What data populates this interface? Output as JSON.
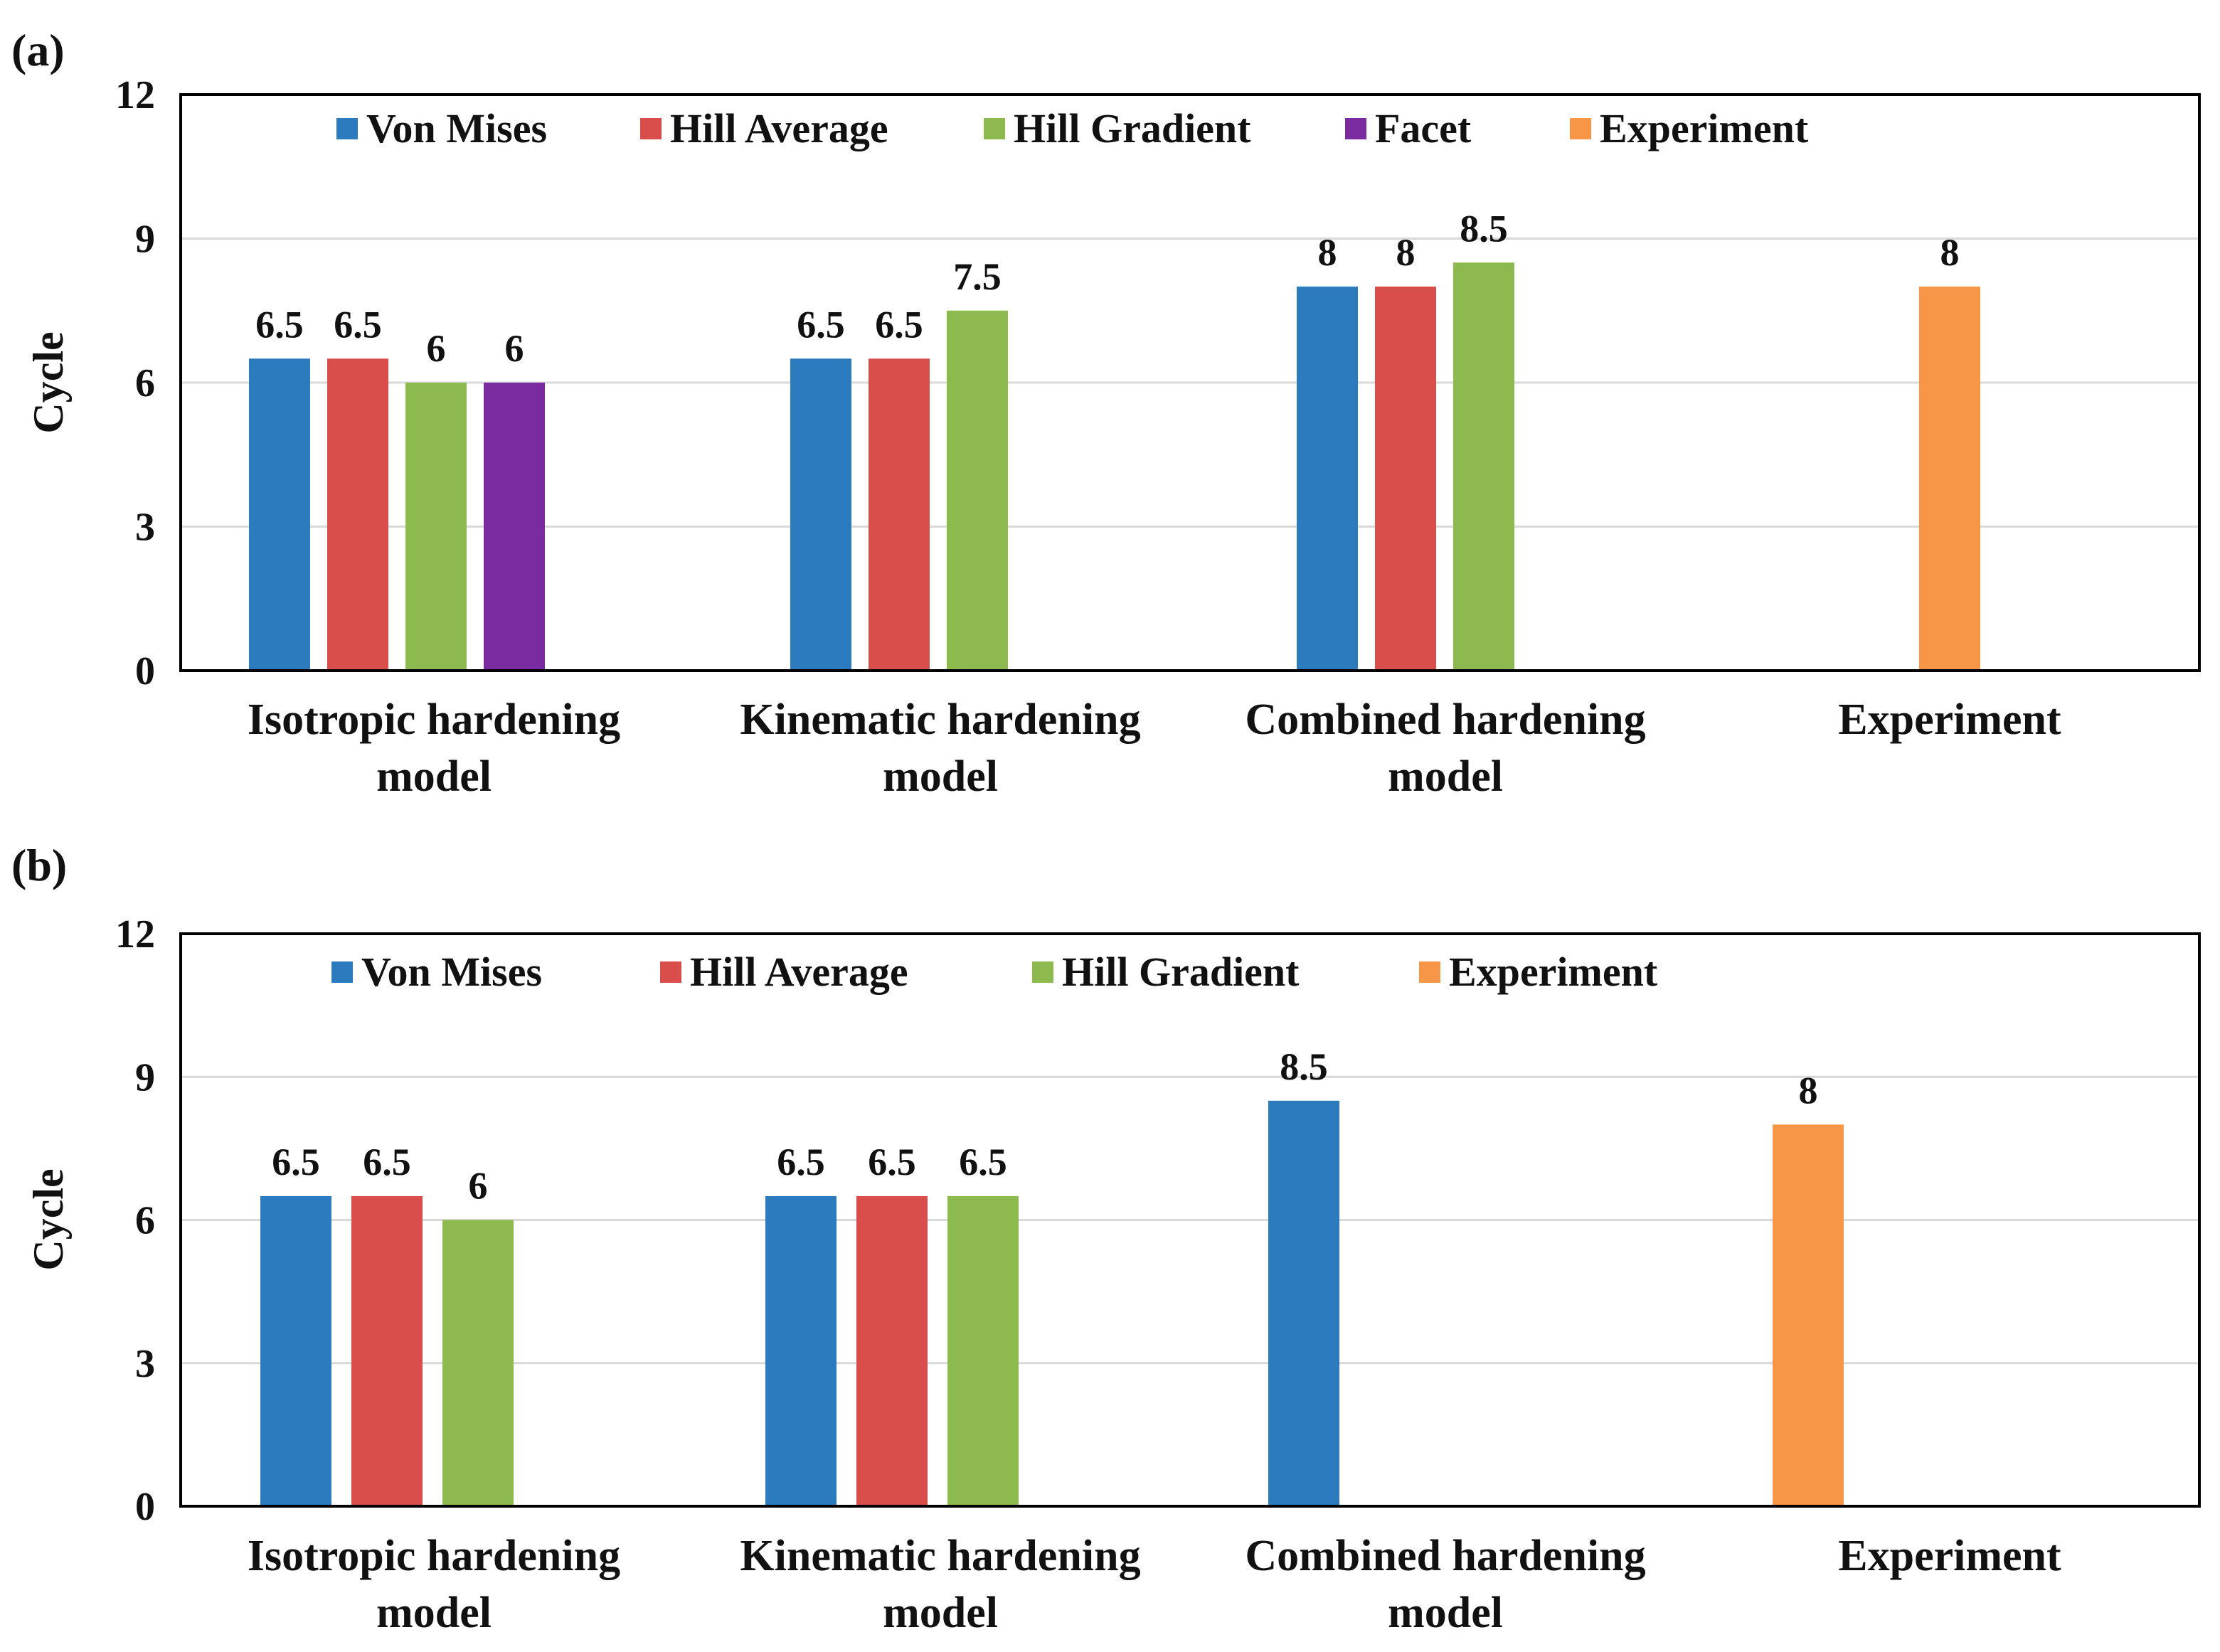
{
  "colors": {
    "Von Mises": "#2c7bbf",
    "Hill Average": "#d94d4b",
    "Hill Gradient": "#8cba4f",
    "Facet": "#7b2ba0",
    "Experiment": "#f79646"
  },
  "chart_data": [
    {
      "panel_label": "(a)",
      "type": "bar",
      "ylabel": "Cycle",
      "ylim": [
        0,
        12
      ],
      "yticks": [
        "0",
        "3",
        "6",
        "9",
        "12"
      ],
      "grid": true,
      "legend": [
        "Von Mises",
        "Hill Average",
        "Hill Gradient",
        "Facet",
        "Experiment"
      ],
      "categories": [
        [
          "Isotropic hardening",
          "model"
        ],
        [
          "Kinematic hardening",
          "model"
        ],
        [
          "Combined hardening",
          "model"
        ],
        [
          "Experiment"
        ]
      ],
      "groups": [
        [
          {
            "series": "Von Mises",
            "value": 6.5,
            "label": "6.5"
          },
          {
            "series": "Hill Average",
            "value": 6.5,
            "label": "6.5"
          },
          {
            "series": "Hill Gradient",
            "value": 6,
            "label": "6"
          },
          {
            "series": "Facet",
            "value": 6,
            "label": "6"
          }
        ],
        [
          {
            "series": "Von Mises",
            "value": 6.5,
            "label": "6.5"
          },
          {
            "series": "Hill Average",
            "value": 6.5,
            "label": "6.5"
          },
          {
            "series": "Hill Gradient",
            "value": 7.5,
            "label": "7.5"
          }
        ],
        [
          {
            "series": "Von Mises",
            "value": 8,
            "label": "8"
          },
          {
            "series": "Hill Average",
            "value": 8,
            "label": "8"
          },
          {
            "series": "Hill Gradient",
            "value": 8.5,
            "label": "8.5"
          }
        ],
        [
          {
            "series": "Experiment",
            "value": 8,
            "label": "8"
          }
        ]
      ]
    },
    {
      "panel_label": "(b)",
      "type": "bar",
      "ylabel": "Cycle",
      "ylim": [
        0,
        12
      ],
      "yticks": [
        "0",
        "3",
        "6",
        "9",
        "12"
      ],
      "grid": true,
      "legend": [
        "Von Mises",
        "Hill Average",
        "Hill Gradient",
        "Experiment"
      ],
      "categories": [
        [
          "Isotropic hardening",
          "model"
        ],
        [
          "Kinematic hardening",
          "model"
        ],
        [
          "Combined hardening",
          "model"
        ],
        [
          "Experiment"
        ]
      ],
      "groups": [
        [
          {
            "series": "Von Mises",
            "value": 6.5,
            "label": "6.5"
          },
          {
            "series": "Hill Average",
            "value": 6.5,
            "label": "6.5"
          },
          {
            "series": "Hill Gradient",
            "value": 6,
            "label": "6"
          }
        ],
        [
          {
            "series": "Von Mises",
            "value": 6.5,
            "label": "6.5"
          },
          {
            "series": "Hill Average",
            "value": 6.5,
            "label": "6.5"
          },
          {
            "series": "Hill Gradient",
            "value": 6.5,
            "label": "6.5"
          }
        ],
        [
          {
            "series": "Von Mises",
            "value": 8.5,
            "label": "8.5"
          }
        ],
        [
          {
            "series": "Experiment",
            "value": 8,
            "label": "8"
          }
        ]
      ]
    }
  ]
}
